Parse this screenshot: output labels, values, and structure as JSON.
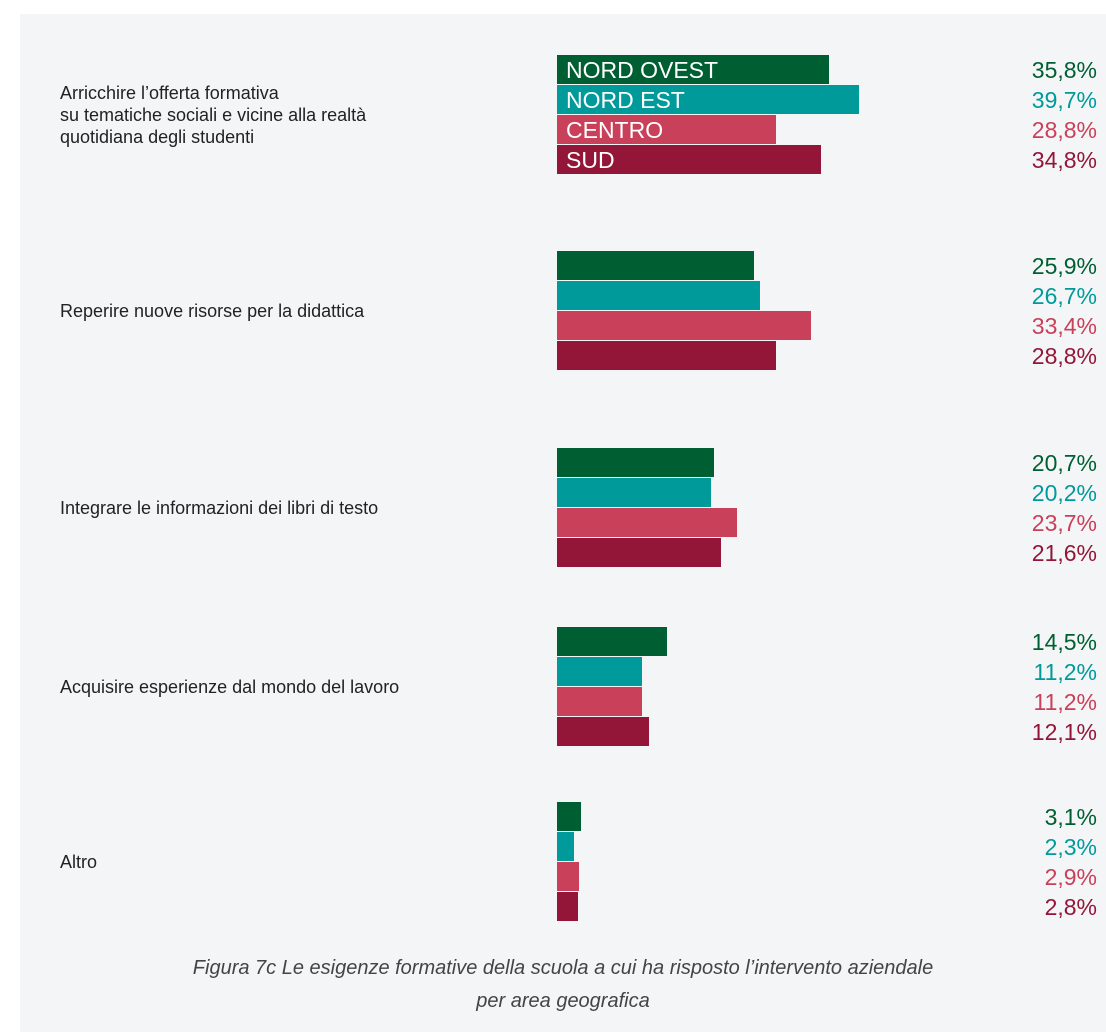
{
  "chart_data": {
    "type": "bar",
    "orientation": "horizontal",
    "caption": "Figura 7c Le esigenze formative della scuola a cui ha risposto l’intervento aziendale\nper area geografica",
    "categories": [
      "Arricchire l’offerta formativa\nsu tematiche sociali e vicine alla realtà\nquotidiana degli studenti",
      "Reperire nuove risorse per la didattica",
      "Integrare le informazioni dei libri di testo",
      "Acquisire esperienze dal mondo del lavoro",
      "Altro"
    ],
    "series": [
      {
        "name": "NORD OVEST",
        "color": "#005f32",
        "values": [
          35.8,
          25.9,
          20.7,
          14.5,
          3.1
        ],
        "value_labels": [
          "35,8%",
          "25,9%",
          "20,7%",
          "14,5%",
          "3,1%"
        ]
      },
      {
        "name": "NORD EST",
        "color": "#009a9a",
        "values": [
          39.7,
          26.7,
          20.2,
          11.2,
          2.3
        ],
        "value_labels": [
          "39,7%",
          "26,7%",
          "20,2%",
          "11,2%",
          "2,3%"
        ]
      },
      {
        "name": "CENTRO",
        "color": "#c9405a",
        "values": [
          28.8,
          33.4,
          23.7,
          11.2,
          2.9
        ],
        "value_labels": [
          "28,8%",
          "33,4%",
          "23,7%",
          "11,2%",
          "2,9%"
        ]
      },
      {
        "name": "SUD",
        "color": "#931638",
        "values": [
          34.8,
          28.8,
          21.6,
          12.1,
          2.8
        ],
        "value_labels": [
          "34,8%",
          "28,8%",
          "21,6%",
          "12,1%",
          "2,8%"
        ]
      }
    ]
  }
}
